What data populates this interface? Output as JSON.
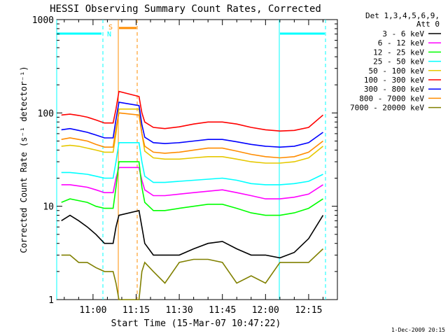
{
  "chart_data": {
    "type": "line",
    "title": "HESSI Observing Summary Count Rates, Corrected",
    "xlabel": "Start Time (15-Mar-07 10:47:22)",
    "ylabel": "Corrected Count Rate (s⁻¹ detector⁻¹)",
    "yscale": "log",
    "ylim": [
      1,
      1000
    ],
    "xlim": [
      "10:47:22",
      "12:25:00"
    ],
    "ytick_labels": [
      "1",
      "10",
      "100",
      "1000"
    ],
    "xtick_labels": [
      "11:00",
      "11:15",
      "11:30",
      "11:45",
      "12:00",
      "12:15"
    ],
    "legend_header": [
      "Det 1,3,4,5,6,9,",
      "Att 0"
    ],
    "legend_position": "right",
    "timestamp": "1-Dec-2009 20:15",
    "markers": {
      "saa_label": "S",
      "night_label": "N"
    },
    "x": [
      "10:49",
      "10:52",
      "10:55",
      "10:58",
      "11:01",
      "11:04",
      "11:07",
      "11:08",
      "11:09",
      "11:16",
      "11:17",
      "11:18",
      "11:21",
      "11:25",
      "11:30",
      "11:35",
      "11:40",
      "11:45",
      "11:50",
      "11:55",
      "12:00",
      "12:05",
      "12:10",
      "12:15",
      "12:20"
    ],
    "series": [
      {
        "name": "3 - 6 keV",
        "color": "#000000",
        "values": [
          7,
          8,
          7,
          6,
          5,
          4,
          4,
          6,
          8,
          9,
          6,
          4,
          3,
          3,
          3,
          3.5,
          4,
          4.2,
          3.5,
          3,
          3,
          2.8,
          3.2,
          4.5,
          8
        ]
      },
      {
        "name": "6 - 12 keV",
        "color": "#ff00ff",
        "values": [
          17,
          17,
          16.5,
          16,
          15,
          14,
          14,
          20,
          26,
          26,
          19,
          15,
          13,
          13,
          13.5,
          14,
          14.5,
          15,
          14,
          13,
          12,
          12,
          12.5,
          13.5,
          17
        ]
      },
      {
        "name": "12 - 25 keV",
        "color": "#00ff00",
        "values": [
          11,
          12,
          11.5,
          11,
          10,
          9.5,
          9.5,
          16,
          30,
          30,
          16,
          11,
          9,
          9,
          9.5,
          10,
          10.5,
          10.5,
          9.5,
          8.5,
          8,
          8,
          8.5,
          9.5,
          12
        ]
      },
      {
        "name": "25 - 50 keV",
        "color": "#00ffff",
        "values": [
          23,
          23,
          22.5,
          22,
          21,
          20,
          20,
          30,
          48,
          48,
          30,
          21,
          18,
          18,
          18.5,
          19,
          19.5,
          20,
          19,
          17.5,
          17,
          17,
          17.5,
          18.5,
          22
        ]
      },
      {
        "name": "50 - 100 keV",
        "color": "#e6c800",
        "values": [
          44,
          45,
          44,
          42,
          40,
          38,
          38,
          60,
          110,
          110,
          60,
          39,
          33,
          32,
          32,
          33,
          34,
          34,
          32,
          30,
          29,
          29,
          30,
          33,
          44
        ]
      },
      {
        "name": "100 - 300 keV",
        "color": "#ff0000",
        "values": [
          95,
          97,
          94,
          90,
          84,
          78,
          78,
          110,
          170,
          150,
          100,
          80,
          70,
          68,
          71,
          76,
          80,
          80,
          76,
          70,
          66,
          64,
          65,
          70,
          95
        ]
      },
      {
        "name": "300 - 800 keV",
        "color": "#0000ff",
        "values": [
          66,
          68,
          65,
          62,
          58,
          54,
          54,
          85,
          130,
          120,
          75,
          55,
          48,
          47,
          48,
          50,
          52,
          52,
          49,
          46,
          44,
          43,
          44,
          48,
          62
        ]
      },
      {
        "name": "800 - 7000 keV",
        "color": "#ff8c00",
        "values": [
          52,
          54,
          52,
          50,
          46,
          43,
          43,
          68,
          100,
          95,
          60,
          44,
          38,
          37,
          38,
          40,
          42,
          42,
          39,
          36,
          34,
          33,
          34,
          38,
          50
        ]
      },
      {
        "name": "7000 - 20000 keV",
        "color": "#808000",
        "values": [
          3,
          3,
          2.5,
          2.5,
          2.2,
          2,
          2,
          1.5,
          1,
          1,
          2,
          2.5,
          2,
          1.5,
          2.5,
          2.7,
          2.7,
          2.5,
          1.5,
          1.8,
          1.5,
          2.5,
          2.5,
          2.5,
          3.5
        ]
      }
    ]
  }
}
